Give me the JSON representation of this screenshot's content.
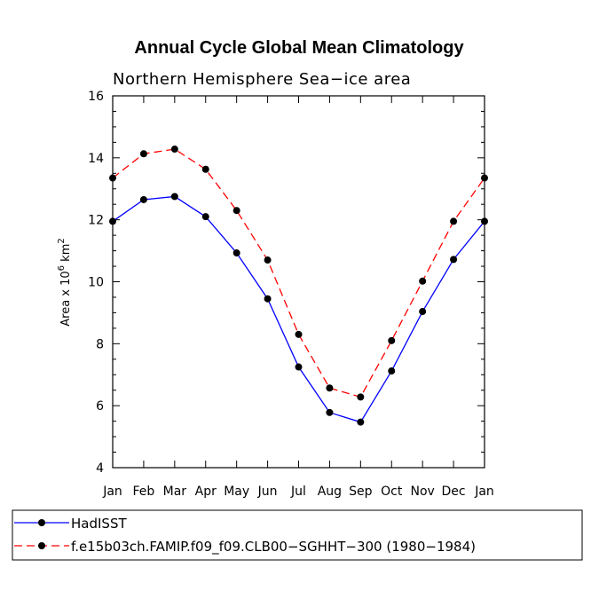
{
  "chart_data": {
    "type": "line",
    "title": "Annual Cycle Global Mean Climatology",
    "subtitle": "Northern Hemisphere Sea−ice area",
    "ylabel_main": "Area x 10",
    "ylabel_exp": "6",
    "ylabel_unit": " km",
    "ylabel_unit_exp": "2",
    "categories": [
      "Jan",
      "Feb",
      "Mar",
      "Apr",
      "May",
      "Jun",
      "Jul",
      "Aug",
      "Sep",
      "Oct",
      "Nov",
      "Dec",
      "Jan"
    ],
    "ylim": [
      4,
      16
    ],
    "yticks": [
      4,
      6,
      8,
      10,
      12,
      14,
      16
    ],
    "series": [
      {
        "name": "HadISST",
        "color": "#0000ff",
        "dash": "solid",
        "values": [
          11.95,
          12.65,
          12.75,
          12.1,
          10.93,
          9.45,
          7.25,
          5.78,
          5.47,
          7.12,
          9.04,
          10.72,
          11.95
        ]
      },
      {
        "name": "f.e15b03ch.FAMIP.f09_f09.CLB00−SGHHT−300 (1980−1984)",
        "color": "#ff0000",
        "dash": "dashed",
        "values": [
          13.35,
          14.13,
          14.28,
          13.63,
          12.3,
          10.7,
          8.3,
          6.57,
          6.28,
          8.1,
          10.02,
          11.95,
          13.35
        ]
      }
    ],
    "marker_color": "#000000"
  }
}
